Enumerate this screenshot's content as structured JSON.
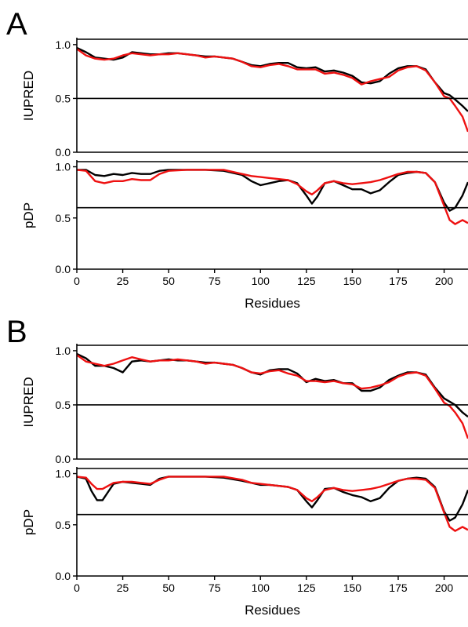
{
  "colors": {
    "series_1": "#000000",
    "series_2": "#ee1111",
    "axis": "#000000"
  },
  "chart_data": [
    {
      "type": "line",
      "panel": "A",
      "ylabel": "IUPRED",
      "ylim": [
        0,
        1.05
      ],
      "xlim": [
        0,
        213
      ],
      "yticks": [
        "0.0",
        "0.5",
        "1.0"
      ],
      "threshold": 0.5,
      "series": [
        {
          "x": [
            0,
            5,
            10,
            15,
            20,
            25,
            30,
            35,
            40,
            45,
            50,
            55,
            60,
            65,
            70,
            75,
            80,
            85,
            90,
            95,
            100,
            105,
            110,
            115,
            120,
            125,
            130,
            135,
            140,
            145,
            150,
            155,
            160,
            165,
            170,
            175,
            180,
            185,
            190,
            195,
            200,
            203,
            206,
            210,
            213
          ],
          "values": [
            0.97,
            0.93,
            0.88,
            0.87,
            0.86,
            0.88,
            0.93,
            0.92,
            0.91,
            0.91,
            0.92,
            0.92,
            0.91,
            0.9,
            0.89,
            0.89,
            0.88,
            0.87,
            0.84,
            0.81,
            0.8,
            0.82,
            0.83,
            0.83,
            0.79,
            0.78,
            0.79,
            0.75,
            0.76,
            0.74,
            0.71,
            0.65,
            0.64,
            0.66,
            0.73,
            0.78,
            0.8,
            0.8,
            0.77,
            0.65,
            0.55,
            0.53,
            0.49,
            0.43,
            0.38
          ]
        },
        {
          "x": [
            0,
            5,
            10,
            15,
            20,
            25,
            30,
            35,
            40,
            45,
            50,
            55,
            60,
            65,
            70,
            75,
            80,
            85,
            90,
            95,
            100,
            105,
            110,
            115,
            120,
            125,
            130,
            135,
            140,
            145,
            150,
            155,
            160,
            165,
            170,
            175,
            180,
            185,
            190,
            195,
            200,
            203,
            206,
            210,
            213
          ],
          "values": [
            0.96,
            0.9,
            0.87,
            0.86,
            0.87,
            0.9,
            0.92,
            0.91,
            0.9,
            0.91,
            0.91,
            0.92,
            0.91,
            0.9,
            0.88,
            0.89,
            0.88,
            0.87,
            0.84,
            0.8,
            0.79,
            0.81,
            0.82,
            0.8,
            0.77,
            0.77,
            0.77,
            0.73,
            0.74,
            0.72,
            0.69,
            0.63,
            0.66,
            0.68,
            0.7,
            0.76,
            0.79,
            0.8,
            0.76,
            0.65,
            0.52,
            0.5,
            0.43,
            0.33,
            0.19
          ]
        }
      ]
    },
    {
      "type": "line",
      "panel": "A",
      "ylabel": "pDP",
      "xlabel": "Residues",
      "ylim": [
        0,
        1.05
      ],
      "xlim": [
        0,
        213
      ],
      "xticks": [
        "0",
        "25",
        "50",
        "75",
        "100",
        "125",
        "150",
        "175",
        "200"
      ],
      "yticks": [
        "0.0",
        "0.5",
        "1.0"
      ],
      "threshold": 0.6,
      "series": [
        {
          "x": [
            0,
            5,
            10,
            15,
            20,
            25,
            30,
            35,
            40,
            45,
            50,
            60,
            70,
            80,
            90,
            95,
            100,
            105,
            110,
            115,
            120,
            125,
            128,
            131,
            135,
            140,
            145,
            150,
            155,
            160,
            165,
            170,
            175,
            180,
            185,
            190,
            195,
            200,
            203,
            206,
            210,
            213
          ],
          "values": [
            0.97,
            0.97,
            0.92,
            0.91,
            0.93,
            0.92,
            0.94,
            0.93,
            0.93,
            0.96,
            0.97,
            0.97,
            0.97,
            0.96,
            0.92,
            0.86,
            0.82,
            0.84,
            0.86,
            0.87,
            0.84,
            0.72,
            0.64,
            0.71,
            0.84,
            0.86,
            0.82,
            0.78,
            0.78,
            0.74,
            0.77,
            0.85,
            0.92,
            0.94,
            0.95,
            0.94,
            0.85,
            0.65,
            0.57,
            0.6,
            0.72,
            0.85
          ]
        },
        {
          "x": [
            0,
            5,
            10,
            15,
            20,
            25,
            30,
            35,
            40,
            45,
            50,
            60,
            70,
            80,
            90,
            95,
            100,
            105,
            110,
            115,
            120,
            125,
            128,
            131,
            135,
            140,
            145,
            150,
            155,
            160,
            165,
            170,
            175,
            180,
            185,
            190,
            195,
            200,
            203,
            206,
            210,
            213
          ],
          "values": [
            0.97,
            0.96,
            0.86,
            0.84,
            0.86,
            0.86,
            0.88,
            0.87,
            0.87,
            0.93,
            0.96,
            0.97,
            0.97,
            0.97,
            0.93,
            0.91,
            0.9,
            0.89,
            0.88,
            0.87,
            0.83,
            0.76,
            0.73,
            0.77,
            0.84,
            0.86,
            0.84,
            0.83,
            0.84,
            0.85,
            0.87,
            0.9,
            0.93,
            0.95,
            0.95,
            0.94,
            0.85,
            0.62,
            0.48,
            0.44,
            0.48,
            0.45
          ]
        }
      ]
    },
    {
      "type": "line",
      "panel": "B",
      "ylabel": "IUPRED",
      "ylim": [
        0,
        1.05
      ],
      "xlim": [
        0,
        213
      ],
      "yticks": [
        "0.0",
        "0.5",
        "1.0"
      ],
      "threshold": 0.5,
      "series": [
        {
          "x": [
            0,
            5,
            10,
            15,
            20,
            25,
            30,
            35,
            40,
            45,
            50,
            55,
            60,
            65,
            70,
            75,
            80,
            85,
            90,
            95,
            100,
            105,
            110,
            115,
            120,
            125,
            130,
            135,
            140,
            145,
            150,
            155,
            160,
            165,
            170,
            175,
            180,
            185,
            190,
            195,
            200,
            203,
            206,
            210,
            213
          ],
          "values": [
            0.97,
            0.93,
            0.86,
            0.86,
            0.84,
            0.8,
            0.9,
            0.91,
            0.9,
            0.91,
            0.92,
            0.91,
            0.91,
            0.9,
            0.89,
            0.89,
            0.88,
            0.87,
            0.84,
            0.8,
            0.78,
            0.82,
            0.83,
            0.83,
            0.79,
            0.71,
            0.74,
            0.72,
            0.73,
            0.7,
            0.7,
            0.63,
            0.63,
            0.66,
            0.73,
            0.77,
            0.8,
            0.8,
            0.78,
            0.66,
            0.56,
            0.53,
            0.5,
            0.43,
            0.39
          ]
        },
        {
          "x": [
            0,
            5,
            10,
            15,
            20,
            25,
            30,
            35,
            40,
            45,
            50,
            55,
            60,
            65,
            70,
            75,
            80,
            85,
            90,
            95,
            100,
            105,
            110,
            115,
            120,
            125,
            130,
            135,
            140,
            145,
            150,
            155,
            160,
            165,
            170,
            175,
            180,
            185,
            190,
            195,
            200,
            203,
            206,
            210,
            213
          ],
          "values": [
            0.96,
            0.9,
            0.88,
            0.86,
            0.88,
            0.91,
            0.94,
            0.92,
            0.9,
            0.91,
            0.91,
            0.92,
            0.91,
            0.9,
            0.88,
            0.89,
            0.88,
            0.87,
            0.84,
            0.8,
            0.79,
            0.81,
            0.82,
            0.79,
            0.77,
            0.72,
            0.72,
            0.71,
            0.72,
            0.7,
            0.69,
            0.65,
            0.66,
            0.68,
            0.71,
            0.76,
            0.79,
            0.8,
            0.77,
            0.65,
            0.52,
            0.49,
            0.43,
            0.33,
            0.19
          ]
        }
      ]
    },
    {
      "type": "line",
      "panel": "B",
      "ylabel": "pDP",
      "xlabel": "Residues",
      "ylim": [
        0,
        1.05
      ],
      "xlim": [
        0,
        213
      ],
      "xticks": [
        "0",
        "25",
        "50",
        "75",
        "100",
        "125",
        "150",
        "175",
        "200"
      ],
      "yticks": [
        "0.0",
        "0.5",
        "1.0"
      ],
      "threshold": 0.6,
      "series": [
        {
          "x": [
            0,
            5,
            8,
            11,
            14,
            17,
            20,
            25,
            30,
            35,
            40,
            45,
            50,
            60,
            70,
            80,
            90,
            95,
            100,
            105,
            110,
            115,
            120,
            125,
            128,
            131,
            135,
            140,
            145,
            150,
            155,
            160,
            165,
            170,
            175,
            180,
            185,
            190,
            195,
            200,
            203,
            206,
            210,
            213
          ],
          "values": [
            0.97,
            0.95,
            0.83,
            0.74,
            0.74,
            0.82,
            0.9,
            0.92,
            0.91,
            0.9,
            0.89,
            0.95,
            0.97,
            0.97,
            0.97,
            0.96,
            0.93,
            0.91,
            0.89,
            0.89,
            0.88,
            0.87,
            0.84,
            0.73,
            0.67,
            0.74,
            0.85,
            0.86,
            0.82,
            0.79,
            0.77,
            0.73,
            0.76,
            0.86,
            0.93,
            0.95,
            0.96,
            0.95,
            0.87,
            0.63,
            0.54,
            0.57,
            0.7,
            0.84
          ]
        },
        {
          "x": [
            0,
            5,
            8,
            11,
            14,
            17,
            20,
            25,
            30,
            35,
            40,
            45,
            50,
            60,
            70,
            80,
            90,
            95,
            100,
            105,
            110,
            115,
            120,
            125,
            128,
            131,
            135,
            140,
            145,
            150,
            155,
            160,
            165,
            170,
            175,
            180,
            185,
            190,
            195,
            200,
            203,
            206,
            210,
            213
          ],
          "values": [
            0.97,
            0.96,
            0.9,
            0.85,
            0.85,
            0.88,
            0.91,
            0.92,
            0.92,
            0.91,
            0.9,
            0.94,
            0.97,
            0.97,
            0.97,
            0.97,
            0.94,
            0.91,
            0.9,
            0.89,
            0.88,
            0.87,
            0.84,
            0.76,
            0.73,
            0.77,
            0.84,
            0.86,
            0.84,
            0.83,
            0.84,
            0.85,
            0.87,
            0.9,
            0.93,
            0.95,
            0.95,
            0.94,
            0.86,
            0.62,
            0.48,
            0.44,
            0.48,
            0.45
          ]
        }
      ]
    }
  ]
}
